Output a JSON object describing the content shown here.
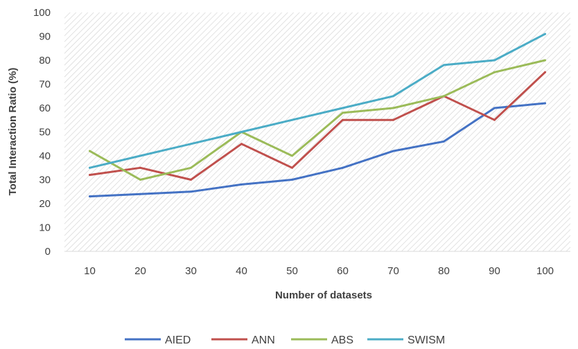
{
  "chart_data": {
    "type": "line",
    "title": "",
    "xlabel": "Number of datasets",
    "ylabel": "Total Interaction Ratio (%)",
    "ylim": [
      0,
      100
    ],
    "ytick_step": 10,
    "grid": false,
    "plot_background": "diagonal-hatch",
    "legend_position": "bottom",
    "categories": [
      "10",
      "20",
      "30",
      "40",
      "50",
      "60",
      "70",
      "80",
      "90",
      "100"
    ],
    "y_ticks": [
      "0",
      "10",
      "20",
      "30",
      "40",
      "50",
      "60",
      "70",
      "80",
      "90",
      "100"
    ],
    "series": [
      {
        "name": "AIED",
        "color": "#4472C4",
        "values": [
          23,
          24,
          25,
          28,
          30,
          35,
          42,
          46,
          60,
          62
        ]
      },
      {
        "name": "ANN",
        "color": "#C0504D",
        "values": [
          32,
          35,
          30,
          45,
          35,
          55,
          55,
          65,
          55,
          75
        ]
      },
      {
        "name": "ABS",
        "color": "#9BBB59",
        "values": [
          42,
          30,
          35,
          50,
          40,
          58,
          60,
          65,
          75,
          80
        ]
      },
      {
        "name": "SWISM",
        "color": "#4BACC6",
        "values": [
          35,
          40,
          45,
          50,
          55,
          60,
          65,
          78,
          80,
          91
        ]
      }
    ]
  }
}
